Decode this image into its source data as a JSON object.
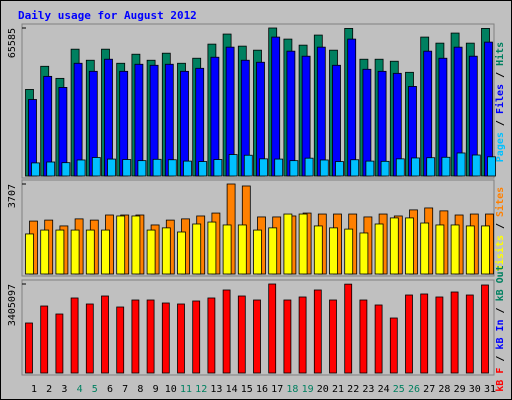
{
  "chart_data": [
    {
      "type": "bar",
      "title": "Daily usage for August 2012",
      "ylim": [
        0,
        65585
      ],
      "yticks": [
        65585
      ],
      "legend_separator": " / ",
      "series": [
        {
          "name": "Hits",
          "color": "#008060",
          "values": [
            38360,
            48620,
            43270,
            56200,
            51300,
            56200,
            49960,
            53970,
            51300,
            54420,
            49960,
            52190,
            58440,
            62900,
            57550,
            55760,
            65585,
            60670,
            57990,
            62450,
            55760,
            65400,
            51750,
            51750,
            50860,
            45950,
            61560,
            58880,
            63340,
            58880,
            65400
          ]
        },
        {
          "name": "Files",
          "color": "#0000ff",
          "values": [
            33900,
            44160,
            39260,
            49960,
            46390,
            51750,
            46390,
            49520,
            49070,
            49520,
            46390,
            47730,
            52640,
            57100,
            51300,
            50410,
            61560,
            55320,
            53090,
            57100,
            49070,
            60670,
            47290,
            46390,
            45500,
            39700,
            55320,
            52190,
            57100,
            53090,
            59330
          ]
        },
        {
          "name": "Pages",
          "color": "#00c0ff",
          "values": [
            5800,
            6200,
            5900,
            7100,
            8200,
            7500,
            7300,
            6800,
            7400,
            7200,
            6600,
            6400,
            7300,
            9500,
            9200,
            7600,
            7500,
            6800,
            7900,
            7100,
            6400,
            7200,
            6600,
            6500,
            7600,
            8000,
            8100,
            8300,
            10200,
            9300,
            8500
          ]
        }
      ]
    },
    {
      "type": "bar",
      "ylim": [
        0,
        3707
      ],
      "yticks": [
        3707
      ],
      "legend_separator": " / ",
      "series": [
        {
          "name": "Sites",
          "color": "#ff8000",
          "values": [
            2180,
            2220,
            1980,
            2270,
            2220,
            2430,
            2430,
            2430,
            2020,
            2220,
            2270,
            2390,
            2510,
            3707,
            3625,
            2350,
            2350,
            2390,
            2510,
            2470,
            2470,
            2470,
            2350,
            2470,
            2390,
            2640,
            2720,
            2600,
            2430,
            2470,
            2470
          ]
        },
        {
          "name": "Visits",
          "color": "#ffff00",
          "values": [
            1650,
            1810,
            1810,
            1810,
            1810,
            1810,
            2390,
            2390,
            1810,
            1900,
            1730,
            2060,
            2140,
            2020,
            2020,
            1810,
            1900,
            2470,
            2470,
            1980,
            1900,
            1850,
            1690,
            2060,
            2310,
            2310,
            2100,
            2020,
            2020,
            1980,
            1980
          ]
        }
      ]
    },
    {
      "type": "bar",
      "ylim": [
        0,
        3405097
      ],
      "yticks": [
        3405097
      ],
      "legend_separator": " / ",
      "categories": [
        "1",
        "2",
        "3",
        "4",
        "5",
        "6",
        "7",
        "8",
        "9",
        "10",
        "11",
        "12",
        "13",
        "14",
        "15",
        "16",
        "17",
        "18",
        "19",
        "20",
        "21",
        "22",
        "23",
        "24",
        "25",
        "26",
        "27",
        "28",
        "29",
        "30",
        "31"
      ],
      "category_colors": [
        "#000000",
        "#000000",
        "#000000",
        "#008060",
        "#008060",
        "#000000",
        "#000000",
        "#000000",
        "#000000",
        "#000000",
        "#008060",
        "#008060",
        "#000000",
        "#000000",
        "#000000",
        "#000000",
        "#000000",
        "#008060",
        "#008060",
        "#000000",
        "#000000",
        "#000000",
        "#000000",
        "#000000",
        "#008060",
        "#008060",
        "#000000",
        "#000000",
        "#000000",
        "#000000",
        "#000000"
      ],
      "series": [
        {
          "name": "kB F",
          "color": "#ff0000",
          "values": [
            1913000,
            2563000,
            2257000,
            2870000,
            2640000,
            2946000,
            2525000,
            2793000,
            2793000,
            2678000,
            2640000,
            2755000,
            2870000,
            3176000,
            2946000,
            2793000,
            3405097,
            2793000,
            2908000,
            3176000,
            2793000,
            3400000,
            2793000,
            2602000,
            2104000,
            2984000,
            3023000,
            2908000,
            3099000,
            2984000,
            3367000
          ]
        }
      ],
      "legend_extra": [
        {
          "name": "kB In",
          "color": "#0000ff"
        },
        {
          "name": "kB Out",
          "color": "#008060"
        }
      ]
    }
  ]
}
